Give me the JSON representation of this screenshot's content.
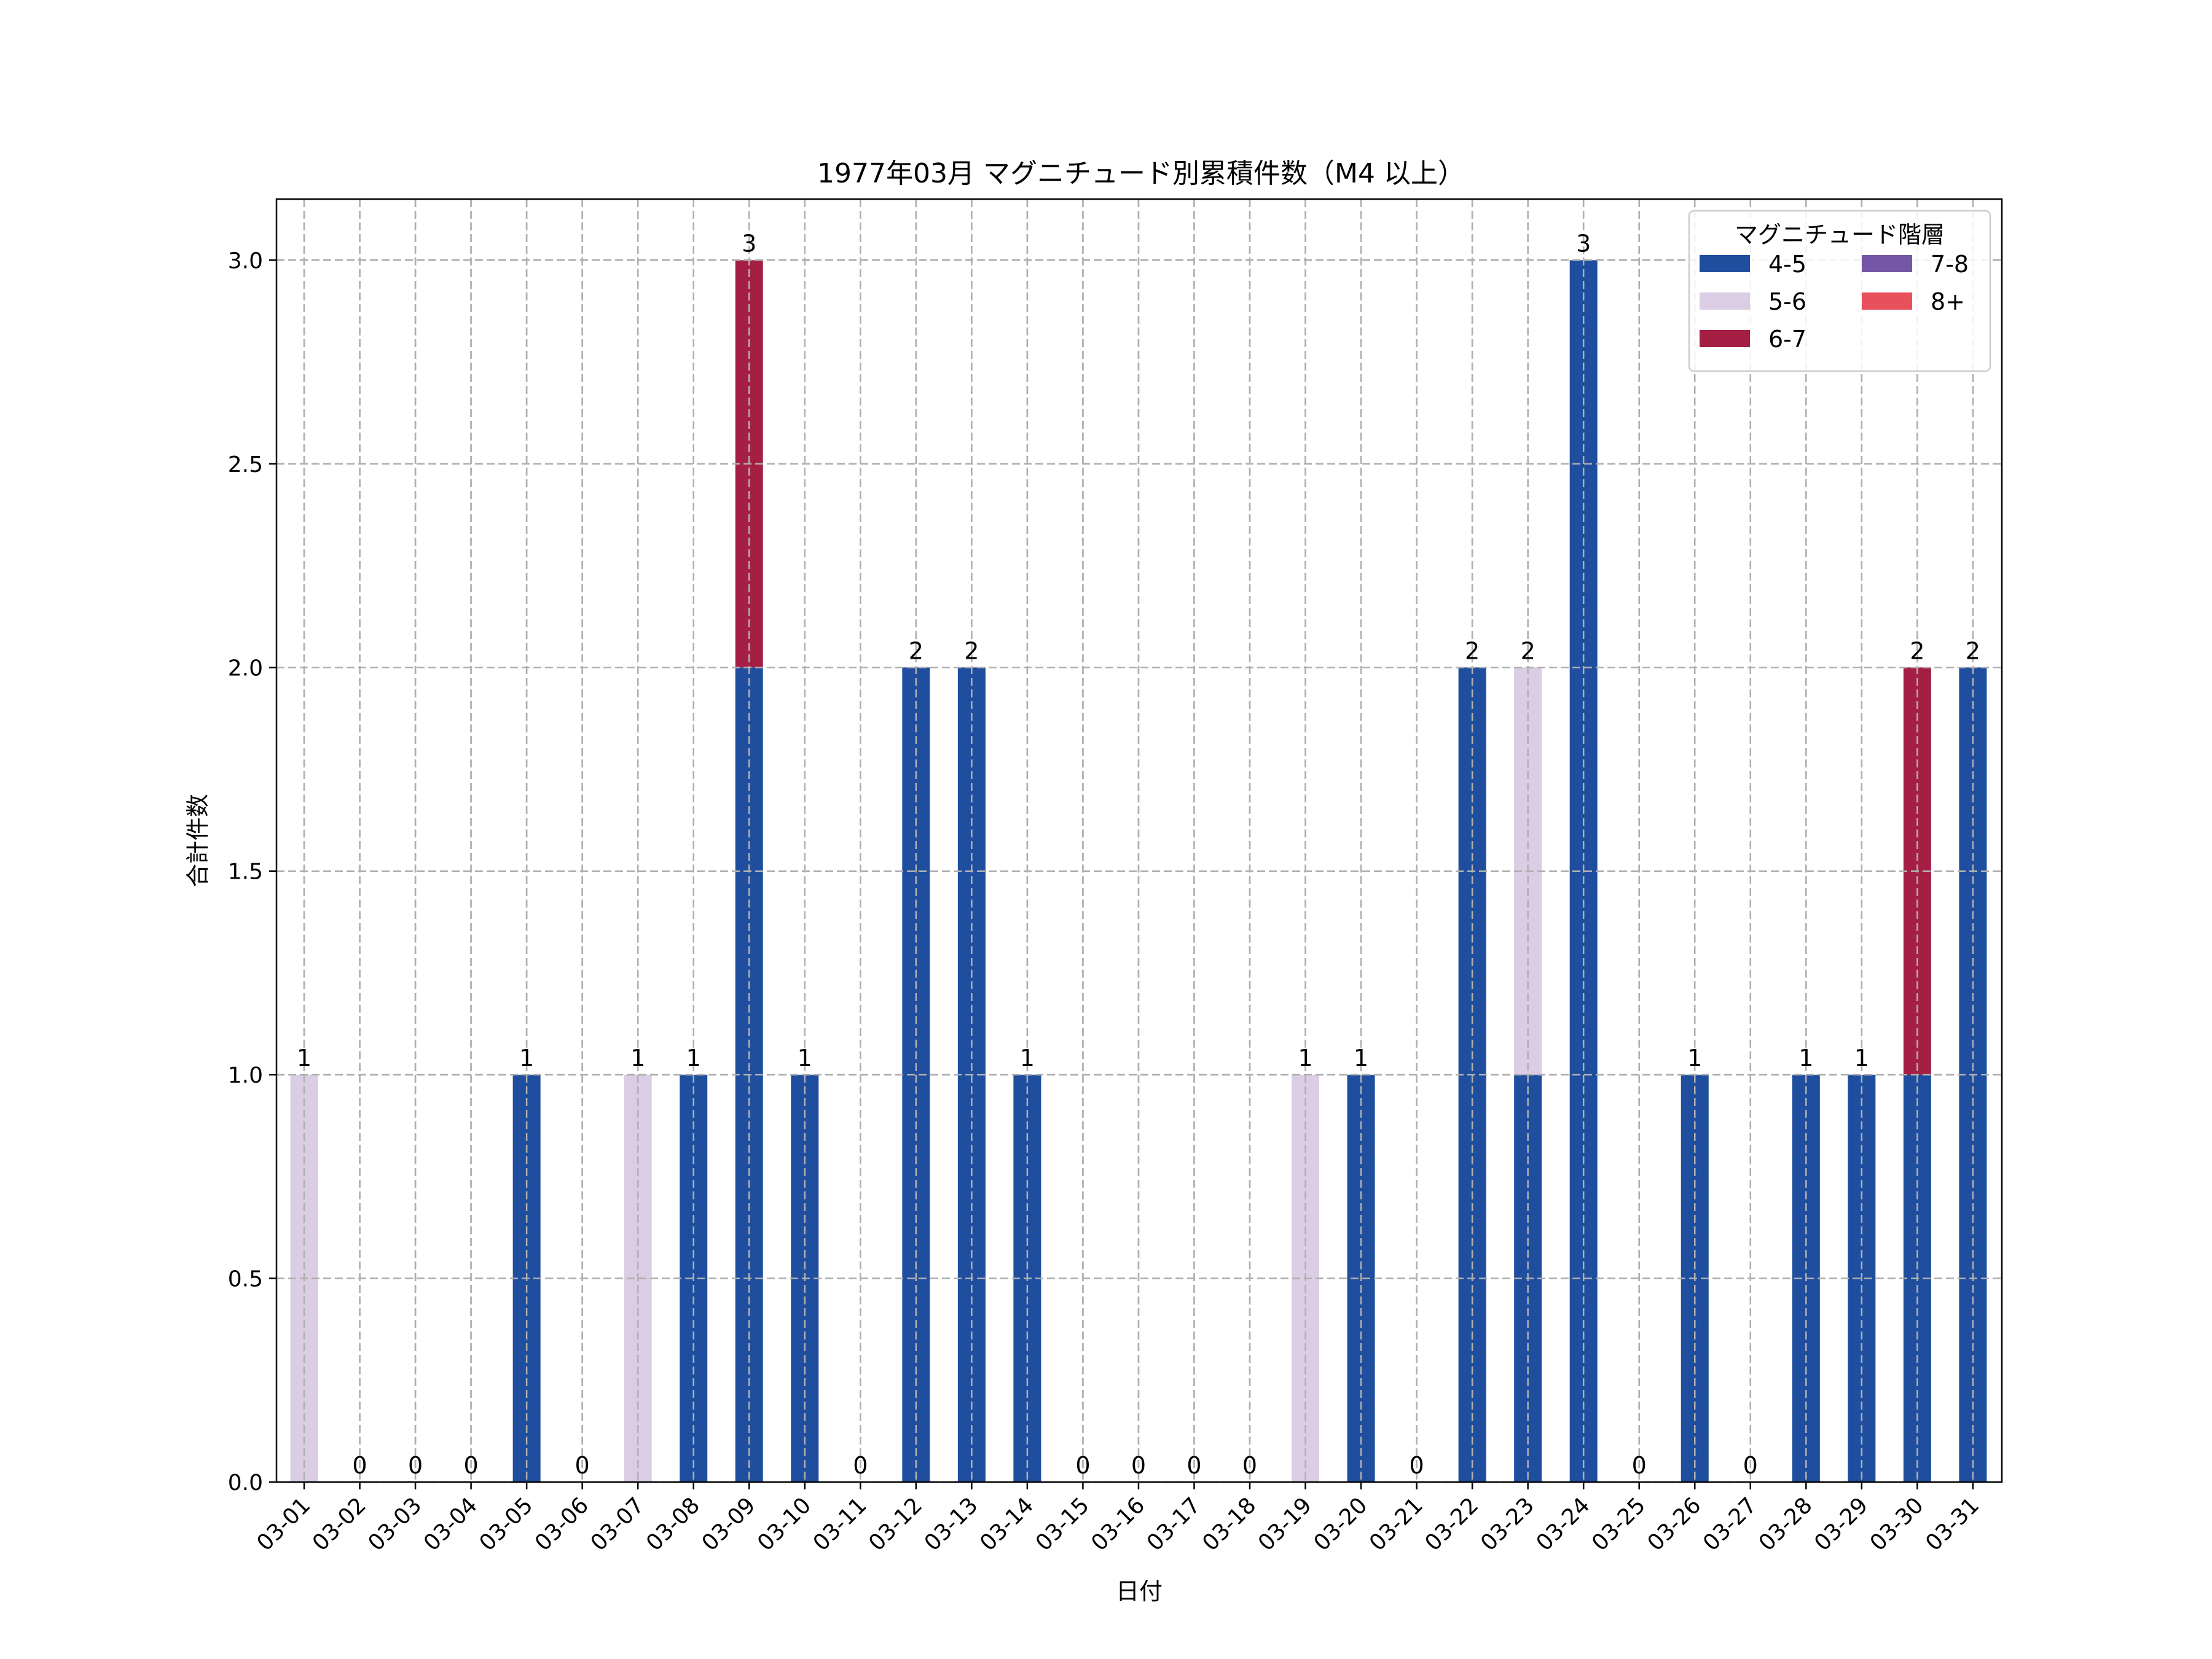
{
  "chart_data": {
    "type": "bar",
    "stacked": true,
    "title": "1977年03月 マグニチュード別累積件数（M4 以上）",
    "xlabel": "日付",
    "ylabel": "合計件数",
    "ylim": [
      0,
      3.15
    ],
    "yticks": [
      "0.0",
      "0.5",
      "1.0",
      "1.5",
      "2.0",
      "2.5",
      "3.0"
    ],
    "grid": true,
    "legend": {
      "title": "マグニチュード階層",
      "placement": "top-right",
      "columns": 2
    },
    "categories": [
      "03-01",
      "03-02",
      "03-03",
      "03-04",
      "03-05",
      "03-06",
      "03-07",
      "03-08",
      "03-09",
      "03-10",
      "03-11",
      "03-12",
      "03-13",
      "03-14",
      "03-15",
      "03-16",
      "03-17",
      "03-18",
      "03-19",
      "03-20",
      "03-21",
      "03-22",
      "03-23",
      "03-24",
      "03-25",
      "03-26",
      "03-27",
      "03-28",
      "03-29",
      "03-30",
      "03-31"
    ],
    "series": [
      {
        "name": "4-5",
        "color": "#1f4e9e",
        "values": [
          0,
          0,
          0,
          0,
          1,
          0,
          0,
          1,
          2,
          1,
          0,
          2,
          2,
          1,
          0,
          0,
          0,
          0,
          0,
          1,
          0,
          2,
          1,
          3,
          0,
          1,
          0,
          1,
          1,
          1,
          2
        ]
      },
      {
        "name": "5-6",
        "color": "#dbcde4",
        "values": [
          1,
          0,
          0,
          0,
          0,
          0,
          1,
          0,
          0,
          0,
          0,
          0,
          0,
          0,
          0,
          0,
          0,
          0,
          1,
          0,
          0,
          0,
          1,
          0,
          0,
          0,
          0,
          0,
          0,
          0,
          0
        ]
      },
      {
        "name": "6-7",
        "color": "#a51f45",
        "values": [
          0,
          0,
          0,
          0,
          0,
          0,
          0,
          0,
          1,
          0,
          0,
          0,
          0,
          0,
          0,
          0,
          0,
          0,
          0,
          0,
          0,
          0,
          0,
          0,
          0,
          0,
          0,
          0,
          0,
          1,
          0
        ]
      },
      {
        "name": "7-8",
        "color": "#7357a6",
        "values": [
          0,
          0,
          0,
          0,
          0,
          0,
          0,
          0,
          0,
          0,
          0,
          0,
          0,
          0,
          0,
          0,
          0,
          0,
          0,
          0,
          0,
          0,
          0,
          0,
          0,
          0,
          0,
          0,
          0,
          0,
          0
        ]
      },
      {
        "name": "8+",
        "color": "#e8505b",
        "values": [
          0,
          0,
          0,
          0,
          0,
          0,
          0,
          0,
          0,
          0,
          0,
          0,
          0,
          0,
          0,
          0,
          0,
          0,
          0,
          0,
          0,
          0,
          0,
          0,
          0,
          0,
          0,
          0,
          0,
          0,
          0
        ]
      }
    ],
    "totals": [
      "1",
      "0",
      "0",
      "0",
      "1",
      "0",
      "1",
      "1",
      "3",
      "1",
      "0",
      "2",
      "2",
      "1",
      "0",
      "0",
      "0",
      "0",
      "1",
      "1",
      "0",
      "2",
      "2",
      "3",
      "0",
      "1",
      "0",
      "1",
      "1",
      "2",
      "2"
    ]
  }
}
